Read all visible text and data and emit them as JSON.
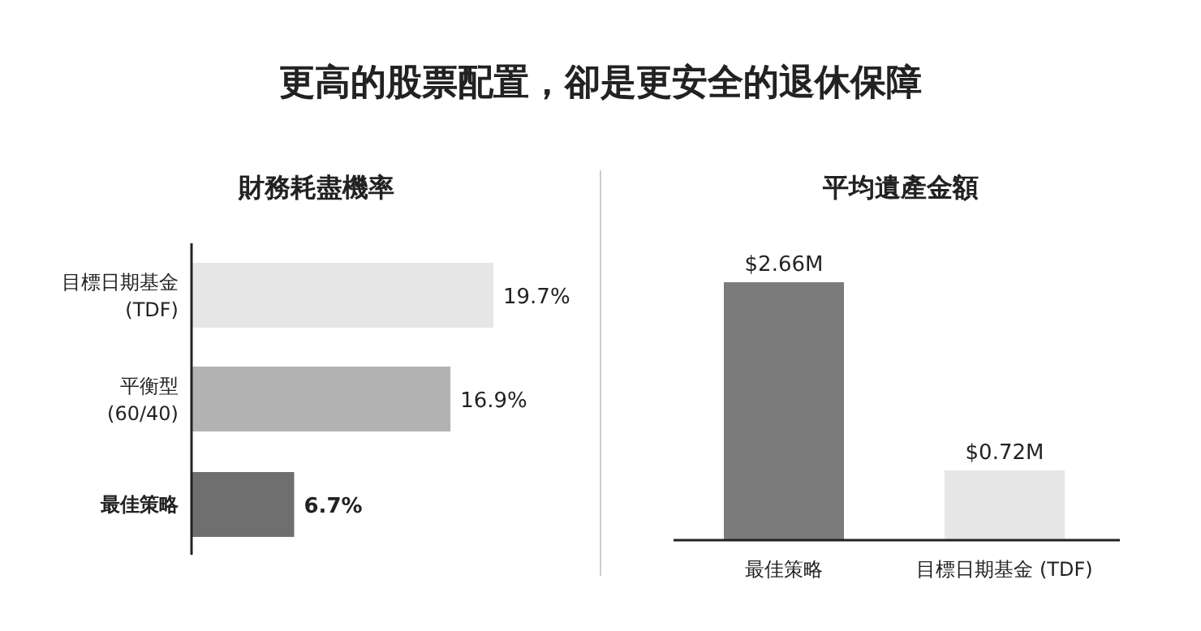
{
  "chart_data": [
    {
      "type": "other",
      "title": "更高的股票配置，卻是更安全的退休保障"
    },
    {
      "type": "bar",
      "orientation": "horizontal",
      "title": "財務耗盡機率",
      "categories": [
        "目標日期基金\n(TDF)",
        "平衡型\n(60/40)",
        "最佳策略"
      ],
      "values": [
        19.7,
        16.9,
        6.7
      ],
      "colors": [
        "#e6e6e6",
        "#b3b3b3",
        "#6f6f6f"
      ],
      "value_labels": [
        "19.7%",
        "16.9%",
        "6.7%"
      ]
    },
    {
      "type": "bar",
      "title": "平均遺產金額",
      "categories": [
        "最佳策略",
        "目標日期基金 (TDF)"
      ],
      "values": [
        2.66,
        0.72
      ],
      "colors": [
        "#7b7b7b",
        "#e6e6e6"
      ],
      "value_labels": [
        "$2.66M",
        "$0.72M"
      ]
    }
  ]
}
